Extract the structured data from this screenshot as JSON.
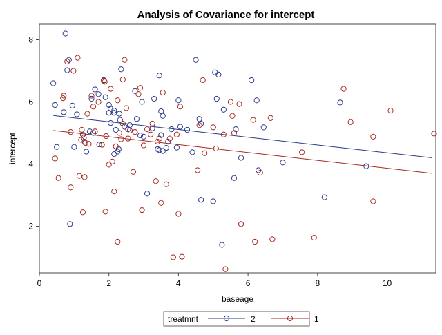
{
  "chart_data": {
    "type": "scatter",
    "title": "Analysis of Covariance for intercept",
    "xlabel": "baseage",
    "ylabel": "intercept",
    "xlim": [
      0,
      11.4
    ],
    "ylim": [
      0.5,
      8.5
    ],
    "x_ticks": [
      0,
      2,
      4,
      6,
      8,
      10
    ],
    "y_ticks": [
      2,
      4,
      6,
      8
    ],
    "grid": false,
    "legend": {
      "title": "treatmnt",
      "placement": "bottom-center",
      "entries": [
        "2",
        "1"
      ]
    },
    "series": [
      {
        "name": "2",
        "color": "#2b3a86",
        "fit_line": [
          [
            0.4,
            5.56
          ],
          [
            11.3,
            4.2
          ]
        ],
        "points": [
          [
            0.4,
            6.6
          ],
          [
            0.45,
            5.9
          ],
          [
            0.5,
            4.55
          ],
          [
            0.7,
            5.67
          ],
          [
            0.75,
            8.2
          ],
          [
            0.8,
            7.02
          ],
          [
            0.85,
            7.35
          ],
          [
            0.88,
            2.07
          ],
          [
            0.95,
            5.88
          ],
          [
            1.0,
            4.55
          ],
          [
            1.08,
            5.6
          ],
          [
            1.25,
            4.95
          ],
          [
            1.3,
            4.72
          ],
          [
            1.35,
            4.4
          ],
          [
            1.45,
            5.05
          ],
          [
            1.5,
            6.1
          ],
          [
            1.6,
            6.4
          ],
          [
            1.7,
            6.25
          ],
          [
            1.72,
            4.63
          ],
          [
            1.85,
            6.7
          ],
          [
            1.9,
            6.15
          ],
          [
            2.0,
            5.9
          ],
          [
            2.05,
            5.78
          ],
          [
            2.05,
            5.32
          ],
          [
            2.15,
            4.32
          ],
          [
            2.15,
            5.72
          ],
          [
            2.2,
            5.1
          ],
          [
            2.25,
            4.4
          ],
          [
            2.28,
            4.48
          ],
          [
            2.3,
            5.62
          ],
          [
            2.32,
            5.42
          ],
          [
            2.35,
            7.05
          ],
          [
            2.45,
            5.2
          ],
          [
            2.55,
            5.12
          ],
          [
            2.6,
            5.25
          ],
          [
            2.75,
            6.35
          ],
          [
            2.8,
            5.45
          ],
          [
            2.9,
            4.92
          ],
          [
            2.95,
            6.0
          ],
          [
            3.1,
            3.05
          ],
          [
            3.25,
            5.15
          ],
          [
            3.3,
            6.1
          ],
          [
            3.4,
            4.48
          ],
          [
            3.45,
            4.45
          ],
          [
            3.45,
            6.85
          ],
          [
            3.5,
            5.7
          ],
          [
            3.5,
            4.93
          ],
          [
            3.55,
            5.55
          ],
          [
            3.55,
            4.42
          ],
          [
            3.65,
            4.52
          ],
          [
            3.7,
            4.72
          ],
          [
            3.8,
            5.12
          ],
          [
            3.95,
            4.53
          ],
          [
            4.0,
            6.05
          ],
          [
            4.05,
            5.2
          ],
          [
            4.25,
            5.1
          ],
          [
            4.4,
            4.38
          ],
          [
            4.5,
            7.35
          ],
          [
            4.6,
            5.45
          ],
          [
            4.65,
            5.3
          ],
          [
            4.65,
            2.85
          ],
          [
            5.0,
            2.8
          ],
          [
            5.05,
            6.95
          ],
          [
            5.15,
            6.88
          ],
          [
            5.1,
            6.1
          ],
          [
            5.25,
            1.4
          ],
          [
            5.3,
            5.75
          ],
          [
            5.6,
            3.55
          ],
          [
            5.65,
            5.12
          ],
          [
            5.8,
            4.2
          ],
          [
            6.1,
            6.7
          ],
          [
            6.25,
            6.05
          ],
          [
            6.3,
            3.8
          ],
          [
            6.45,
            5.18
          ],
          [
            7.0,
            4.05
          ],
          [
            8.2,
            2.93
          ],
          [
            8.65,
            5.98
          ],
          [
            9.4,
            3.93
          ],
          [
            2.15,
            5.65
          ],
          [
            3.0,
            4.88
          ],
          [
            2.0,
            5.65
          ],
          [
            1.55,
            5.0
          ]
        ]
      },
      {
        "name": "1",
        "color": "#a52a1e",
        "fit_line": [
          [
            0.4,
            5.08
          ],
          [
            11.3,
            3.7
          ]
        ],
        "points": [
          [
            0.45,
            4.18
          ],
          [
            0.55,
            3.55
          ],
          [
            0.68,
            6.12
          ],
          [
            0.7,
            6.2
          ],
          [
            0.8,
            7.3
          ],
          [
            0.9,
            5.03
          ],
          [
            0.9,
            3.25
          ],
          [
            0.98,
            7.0
          ],
          [
            1.1,
            7.42
          ],
          [
            1.15,
            3.62
          ],
          [
            1.2,
            4.78
          ],
          [
            1.22,
            5.1
          ],
          [
            1.25,
            2.45
          ],
          [
            1.28,
            4.85
          ],
          [
            1.3,
            3.58
          ],
          [
            1.32,
            4.68
          ],
          [
            1.38,
            5.62
          ],
          [
            1.42,
            4.65
          ],
          [
            1.5,
            6.2
          ],
          [
            1.55,
            5.85
          ],
          [
            1.6,
            5.05
          ],
          [
            1.8,
            4.62
          ],
          [
            1.85,
            6.68
          ],
          [
            1.88,
            6.65
          ],
          [
            1.9,
            2.47
          ],
          [
            1.92,
            4.9
          ],
          [
            2.0,
            3.98
          ],
          [
            2.05,
            6.42
          ],
          [
            2.1,
            4.08
          ],
          [
            2.15,
            3.12
          ],
          [
            2.2,
            4.57
          ],
          [
            2.25,
            1.5
          ],
          [
            2.3,
            5.0
          ],
          [
            2.35,
            4.8
          ],
          [
            2.4,
            6.72
          ],
          [
            2.45,
            7.35
          ],
          [
            2.5,
            5.8
          ],
          [
            2.6,
            5.08
          ],
          [
            2.7,
            3.75
          ],
          [
            2.75,
            5.03
          ],
          [
            2.85,
            6.25
          ],
          [
            2.9,
            6.45
          ],
          [
            2.95,
            2.52
          ],
          [
            3.0,
            4.6
          ],
          [
            3.1,
            5.12
          ],
          [
            3.2,
            4.95
          ],
          [
            3.25,
            5.3
          ],
          [
            3.35,
            3.45
          ],
          [
            3.45,
            4.82
          ],
          [
            3.5,
            2.75
          ],
          [
            3.55,
            6.3
          ],
          [
            3.65,
            3.35
          ],
          [
            3.75,
            4.82
          ],
          [
            3.85,
            1.0
          ],
          [
            3.95,
            4.95
          ],
          [
            4.0,
            2.4
          ],
          [
            4.05,
            5.85
          ],
          [
            4.1,
            1.02
          ],
          [
            4.55,
            3.8
          ],
          [
            4.6,
            5.25
          ],
          [
            4.7,
            6.7
          ],
          [
            4.75,
            4.35
          ],
          [
            5.0,
            5.18
          ],
          [
            5.08,
            4.5
          ],
          [
            5.3,
            4.95
          ],
          [
            5.35,
            0.62
          ],
          [
            5.5,
            6.0
          ],
          [
            5.55,
            5.55
          ],
          [
            5.6,
            5.0
          ],
          [
            5.75,
            5.93
          ],
          [
            5.8,
            2.07
          ],
          [
            6.15,
            5.42
          ],
          [
            6.2,
            1.5
          ],
          [
            6.35,
            3.72
          ],
          [
            6.65,
            5.48
          ],
          [
            6.7,
            1.58
          ],
          [
            7.55,
            4.38
          ],
          [
            7.9,
            1.63
          ],
          [
            8.75,
            6.42
          ],
          [
            8.95,
            5.35
          ],
          [
            9.6,
            4.88
          ],
          [
            9.6,
            2.8
          ],
          [
            10.1,
            5.72
          ],
          [
            11.35,
            4.98
          ],
          [
            2.55,
            4.82
          ],
          [
            3.4,
            4.72
          ],
          [
            1.7,
            6.0
          ],
          [
            2.25,
            6.05
          ],
          [
            2.4,
            5.3
          ]
        ]
      }
    ]
  }
}
